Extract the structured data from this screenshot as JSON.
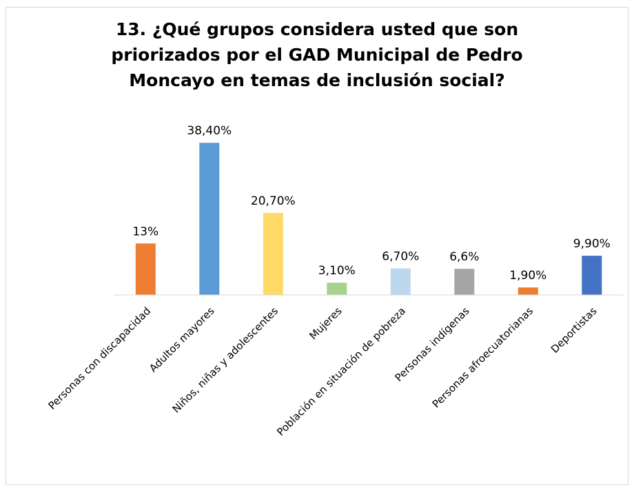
{
  "chart_data": {
    "type": "bar",
    "title_lines": [
      "13. ¿Qué grupos considera usted que son",
      "priorizados por el GAD Municipal de Pedro",
      "Moncayo en temas de inclusión social?"
    ],
    "categories": [
      "Personas con discapacidad",
      "Adultos mayores",
      "Niños, niñas y adolescentes",
      "Mujeres",
      "Población en situación de pobreza",
      "Personas indígenas",
      "Personas afroecuatorianas",
      "Deportistas"
    ],
    "values": [
      13,
      38.4,
      20.7,
      3.1,
      6.7,
      6.6,
      1.9,
      9.9
    ],
    "data_labels": [
      "13%",
      "38,40%",
      "20,70%",
      "3,10%",
      "6,70%",
      "6,6%",
      "1,90%",
      "9,90%"
    ],
    "colors": [
      "#ed7d31",
      "#5b9bd5",
      "#ffd966",
      "#a9d18e",
      "#bdd7ee",
      "#a5a5a5",
      "#ed7d31",
      "#4472c4"
    ],
    "ylim": [
      0,
      40
    ],
    "grid": false,
    "legend": "none"
  }
}
